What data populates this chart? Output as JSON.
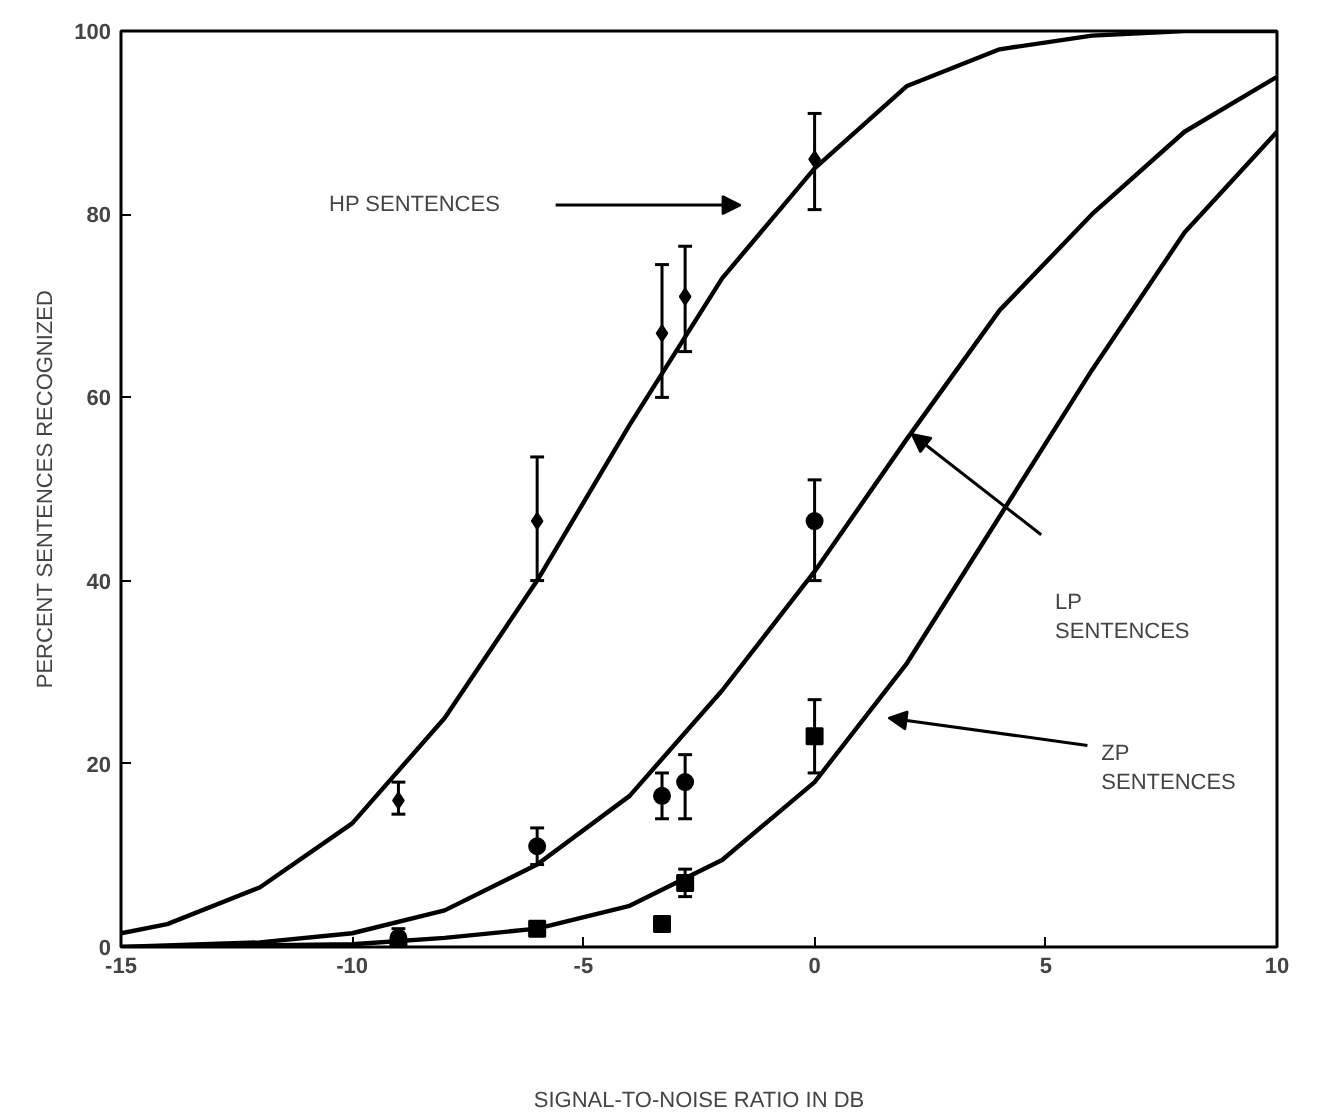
{
  "chart_data": {
    "type": "line",
    "xlabel": "SIGNAL-TO-NOISE RATIO IN DB",
    "ylabel": "PERCENT SENTENCES RECOGNIZED",
    "xlim": [
      -15,
      10
    ],
    "ylim": [
      0,
      100
    ],
    "xticks": [
      -15,
      -10,
      -5,
      0,
      5,
      10
    ],
    "yticks": [
      0,
      20,
      40,
      60,
      80,
      100
    ],
    "grid": false,
    "series": [
      {
        "type": "scatter",
        "marker": "diamond",
        "color": "#000000",
        "x": [
          -9,
          -6,
          -3.3,
          -2.8,
          0
        ],
        "values": [
          16,
          46.5,
          67,
          71,
          86
        ],
        "errors": [
          [
            14.5,
            18
          ],
          [
            40,
            53.5
          ],
          [
            60,
            74.5
          ],
          [
            65,
            76.5
          ],
          [
            80.5,
            91
          ]
        ]
      },
      {
        "type": "scatter",
        "marker": "circle",
        "color": "#000000",
        "x": [
          -9,
          -6,
          -3.3,
          -2.8,
          0
        ],
        "values": [
          1,
          11,
          16.5,
          18,
          46.5
        ],
        "errors": [
          [
            0,
            2
          ],
          [
            9,
            13
          ],
          [
            14,
            19
          ],
          [
            14,
            21
          ],
          [
            40,
            51
          ]
        ]
      },
      {
        "type": "scatter",
        "marker": "square",
        "color": "#000000",
        "x": [
          -9,
          -6,
          -3.3,
          -2.8,
          0
        ],
        "values": [
          0,
          2,
          2.5,
          7,
          23
        ],
        "errors": [
          null,
          null,
          null,
          [
            5.5,
            8.5
          ],
          [
            19,
            27
          ]
        ]
      },
      {
        "color": "#000000",
        "x": [
          -15,
          -14,
          -12,
          -10,
          -8,
          -6,
          -4,
          -2,
          0,
          2,
          4,
          6,
          8,
          10
        ],
        "values": [
          1.5,
          2.5,
          6.5,
          13.5,
          25,
          40,
          57,
          73,
          85,
          94,
          98,
          99.5,
          100,
          100
        ]
      },
      {
        "color": "#000000",
        "x": [
          -15,
          -12,
          -10,
          -8,
          -6,
          -4,
          -2,
          0,
          2,
          4,
          6,
          8,
          10
        ],
        "values": [
          0,
          0.5,
          1.5,
          4,
          9,
          16.5,
          28,
          41,
          55.5,
          69.5,
          80,
          89,
          95
        ]
      },
      {
        "color": "#000000",
        "x": [
          -15,
          -10,
          -8,
          -6,
          -4,
          -2,
          0,
          2,
          4,
          6,
          8,
          10
        ],
        "values": [
          0,
          0.3,
          1,
          2,
          4.5,
          9.5,
          18,
          31,
          47,
          63,
          78,
          89
        ]
      }
    ],
    "annotations": [
      "HP SENTENCES",
      "LP\nSENTENCES",
      "ZP\nSENTENCES"
    ]
  }
}
